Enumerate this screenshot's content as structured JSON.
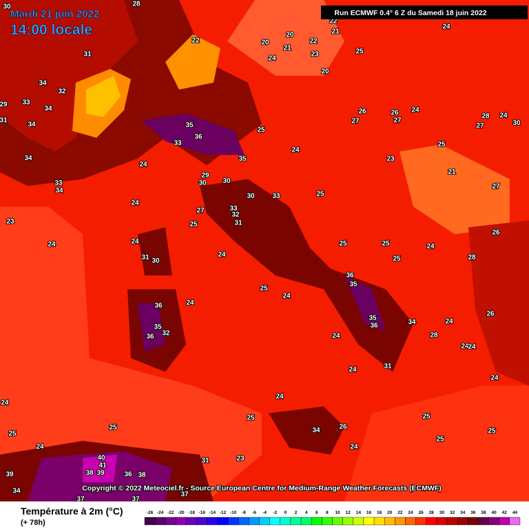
{
  "header": {
    "date": "Mardi 21 juin 2022",
    "time": "14:00 locale",
    "run": "Run ECMWF 0.4° 6 Z du Samedi 18 juin 2022"
  },
  "copyright": "Copyright © 2022 Meteociel.fr - Source European Centre for Medium-Range Weather Forecasts (ECMWF)",
  "legend": {
    "title": "Température à 2m (°C)",
    "lead": "(+ 78h)",
    "ticks": [
      -26,
      -24,
      -22,
      -20,
      -18,
      -16,
      -14,
      -12,
      -10,
      -8,
      -6,
      -4,
      -2,
      0,
      2,
      4,
      6,
      8,
      10,
      12,
      14,
      16,
      18,
      20,
      22,
      24,
      26,
      28,
      30,
      32,
      34,
      36,
      38,
      40,
      42,
      44
    ],
    "colors": [
      "#40004b",
      "#5c0070",
      "#76008f",
      "#8b00aa",
      "#6a00c0",
      "#4b00d4",
      "#2a00e6",
      "#0000ff",
      "#0033ff",
      "#0066ff",
      "#0099ff",
      "#00ccff",
      "#00ffff",
      "#00ffcc",
      "#00ff99",
      "#00ff66",
      "#00ff00",
      "#33ff00",
      "#66ff00",
      "#99ff00",
      "#ccff00",
      "#ffff00",
      "#ffdd00",
      "#ffbb00",
      "#ff9900",
      "#ff6600",
      "#ff3300",
      "#ff0000",
      "#dd0000",
      "#bb0000",
      "#990000",
      "#770000",
      "#660044",
      "#880077",
      "#bb00aa",
      "#ee66ee"
    ]
  },
  "map": {
    "labels": [
      30,
      28,
      22,
      21,
      20,
      22,
      20,
      21,
      23,
      25,
      24,
      20,
      24,
      31,
      22,
      34,
      32,
      33,
      34,
      29,
      31,
      34,
      35,
      36,
      33,
      35,
      24,
      34,
      33,
      34,
      29,
      30,
      30,
      30,
      33,
      27,
      33,
      32,
      31,
      25,
      24,
      23,
      24,
      24,
      31,
      30,
      36,
      35,
      36,
      32,
      24,
      24,
      25,
      24,
      36,
      35,
      35,
      36,
      34,
      28,
      24,
      31,
      24,
      24,
      25,
      34,
      26,
      24,
      25,
      25,
      25,
      24,
      24,
      24,
      26,
      25,
      25,
      24,
      25,
      25,
      24,
      25,
      26,
      27,
      26,
      27,
      24,
      25,
      21,
      28,
      27,
      30,
      24,
      23,
      27,
      26,
      28,
      24,
      25,
      25,
      24,
      31,
      23,
      40,
      41,
      39,
      38,
      36,
      38,
      39,
      34,
      37,
      37,
      37,
      24
    ]
  }
}
